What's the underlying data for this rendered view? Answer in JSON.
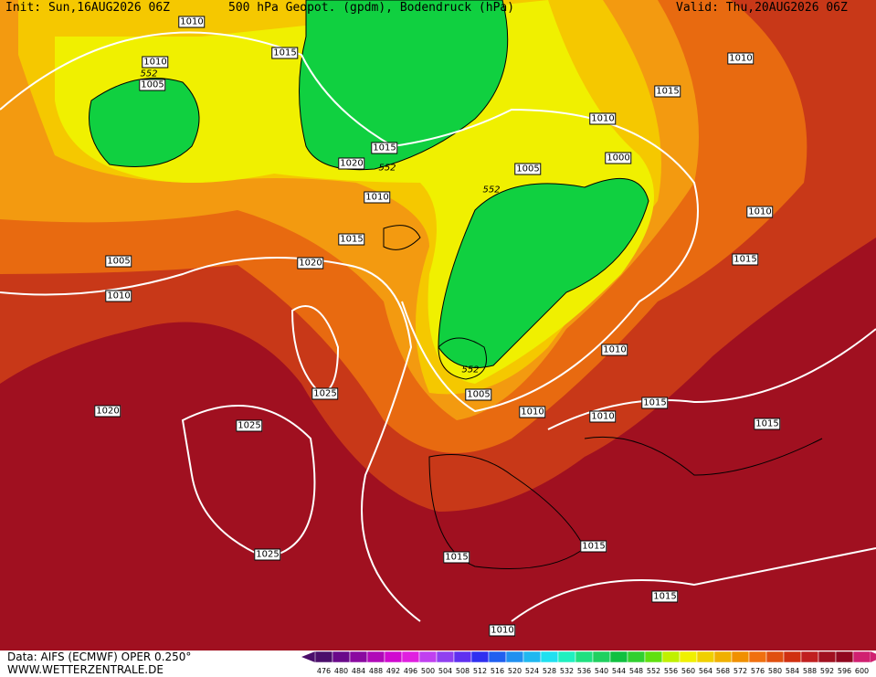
{
  "header": {
    "init": "Init: Sun,16AUG2026 06Z",
    "title": "500 hPa Geopot. (gpdm), Bodendruck (hPa)",
    "valid": "Valid: Thu,20AUG2026 06Z"
  },
  "isobar_labels": [
    "1010",
    "1015",
    "1010",
    "552",
    "1005",
    "1010",
    "1015",
    "1010",
    "1000",
    "1005",
    "552",
    "1015",
    "1020",
    "552",
    "1010",
    "1015",
    "1010",
    "1015",
    "1020",
    "1005",
    "1010",
    "1010",
    "1025",
    "552",
    "1005",
    "1010",
    "1015",
    "1010",
    "1015",
    "1020",
    "1025",
    "1025",
    "1015",
    "1015",
    "1015",
    "1010"
  ],
  "scale": {
    "labels": [
      476,
      480,
      484,
      488,
      492,
      496,
      500,
      504,
      508,
      512,
      516,
      520,
      524,
      528,
      532,
      536,
      540,
      544,
      548,
      552,
      556,
      560,
      564,
      568,
      572,
      576,
      580,
      584,
      588,
      592,
      596,
      600
    ],
    "colors": [
      "#4b0f6b",
      "#6a0a8a",
      "#8a0aa0",
      "#b00ab8",
      "#d00ad0",
      "#e020e0",
      "#c040f0",
      "#9040f0",
      "#6030f0",
      "#3030f0",
      "#2060f0",
      "#2090f0",
      "#20b8f0",
      "#20e0f0",
      "#20f0c0",
      "#20e080",
      "#20d060",
      "#10c040",
      "#30d030",
      "#60e010",
      "#c0f000",
      "#f0f000",
      "#f0d000",
      "#f0b000",
      "#f09000",
      "#f07010",
      "#e05010",
      "#d03010",
      "#c02020",
      "#a01020",
      "#900820",
      "#d02070"
    ]
  },
  "footer": {
    "data": "Data: AIFS (ECMWF) OPER 0.250°",
    "site": "WWW.WETTERZENTRALE.DE"
  }
}
